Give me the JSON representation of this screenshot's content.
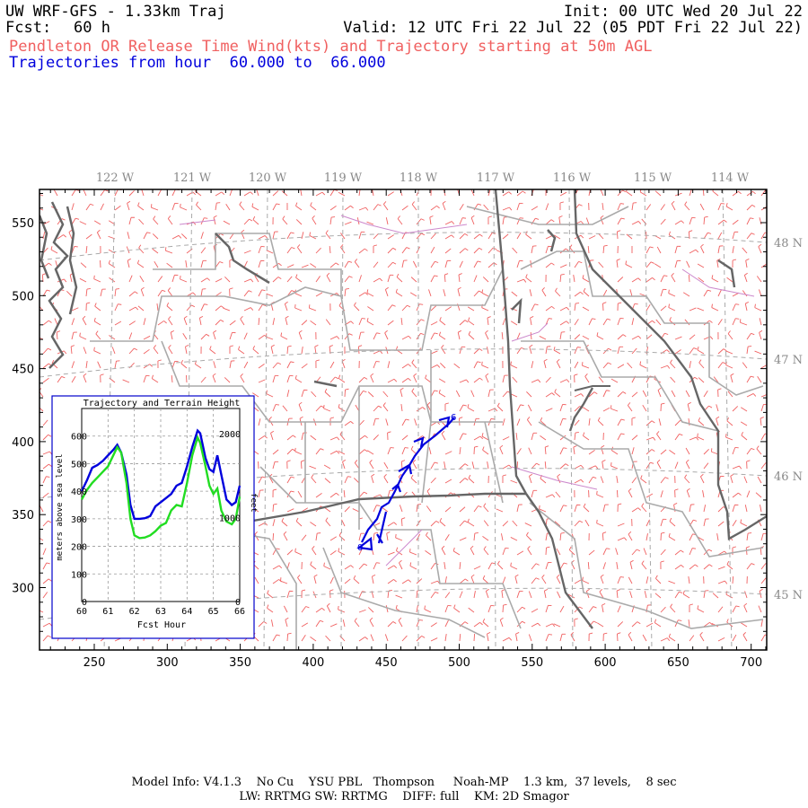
{
  "header": {
    "title": "UW WRF-GFS - 1.33km Traj",
    "forecast_label": "Fcst:",
    "forecast_value": "60 h",
    "init": "Init: 00 UTC Wed 20 Jul 22",
    "valid": "Valid: 12 UTC Fri 22 Jul 22 (05 PDT Fri 22 Jul 22)",
    "subtitle": "Pendleton OR Release Time Wind(kts) and Trajectory starting at 50m AGL",
    "traj_range": "Trajectories from hour  60.000 to  66.000"
  },
  "colors": {
    "wind_barbs": "#f06060",
    "trajectory": "#0000dd",
    "terrain_line": "#22dd22",
    "state_borders": "#666666",
    "county_lines": "#aaaaaa",
    "lat_lon_grid": "#aaaaaa",
    "rivers_roads": "#cc88cc"
  },
  "map": {
    "lon_labels": [
      "122 W",
      "121 W",
      "120 W",
      "119 W",
      "118 W",
      "117 W",
      "116 W",
      "115 W",
      "114 W"
    ],
    "lat_labels": [
      "48 N",
      "47 N",
      "46 N",
      "45 N"
    ],
    "x_ticks": [
      "250",
      "300",
      "350",
      "400",
      "450",
      "500",
      "550",
      "600",
      "650",
      "700"
    ],
    "y_ticks": [
      "550",
      "500",
      "450",
      "400",
      "350",
      "300"
    ]
  },
  "inset": {
    "title": "Trajectory and Terrain Height",
    "left_axis_label": "meters above sea level",
    "right_axis_label": "feet",
    "x_axis_label": "Fcst Hour",
    "x_ticks": [
      "60",
      "61",
      "62",
      "63",
      "64",
      "65",
      "66"
    ],
    "y_left_ticks": [
      "0",
      "100",
      "200",
      "300",
      "400",
      "500",
      "600"
    ],
    "y_right_ticks": [
      "0",
      "1000",
      "2000"
    ]
  },
  "chart_data": {
    "type": "line",
    "x": [
      60.0,
      60.2,
      60.4,
      60.6,
      60.8,
      61.0,
      61.2,
      61.35,
      61.5,
      61.7,
      61.85,
      62.0,
      62.2,
      62.4,
      62.6,
      62.8,
      63.0,
      63.2,
      63.4,
      63.6,
      63.8,
      64.0,
      64.2,
      64.4,
      64.5,
      64.7,
      64.85,
      65.0,
      65.15,
      65.3,
      65.5,
      65.7,
      65.85,
      66.0
    ],
    "series": [
      {
        "values": [
          400,
          440,
          485,
          495,
          510,
          530,
          550,
          568,
          540,
          460,
          350,
          300,
          300,
          302,
          310,
          345,
          360,
          375,
          390,
          420,
          430,
          490,
          560,
          620,
          610,
          520,
          480,
          470,
          530,
          460,
          370,
          350,
          360,
          420
        ]
      },
      {
        "values": [
          370,
          405,
          430,
          450,
          470,
          490,
          530,
          560,
          540,
          430,
          300,
          240,
          230,
          232,
          240,
          255,
          275,
          285,
          330,
          350,
          345,
          430,
          530,
          595,
          575,
          490,
          420,
          390,
          410,
          330,
          290,
          280,
          300,
          380
        ]
      }
    ],
    "xlim": [
      60,
      66
    ],
    "ylim": [
      0,
      700
    ]
  },
  "footer": {
    "line1": "Model Info: V4.1.3    No Cu    YSU PBL   Thompson     Noah-MP    1.3 km,  37 levels,    8 sec",
    "line2": "LW: RRTMG SW: RRTMG    DIFF: full    KM: 2D Smagor"
  }
}
